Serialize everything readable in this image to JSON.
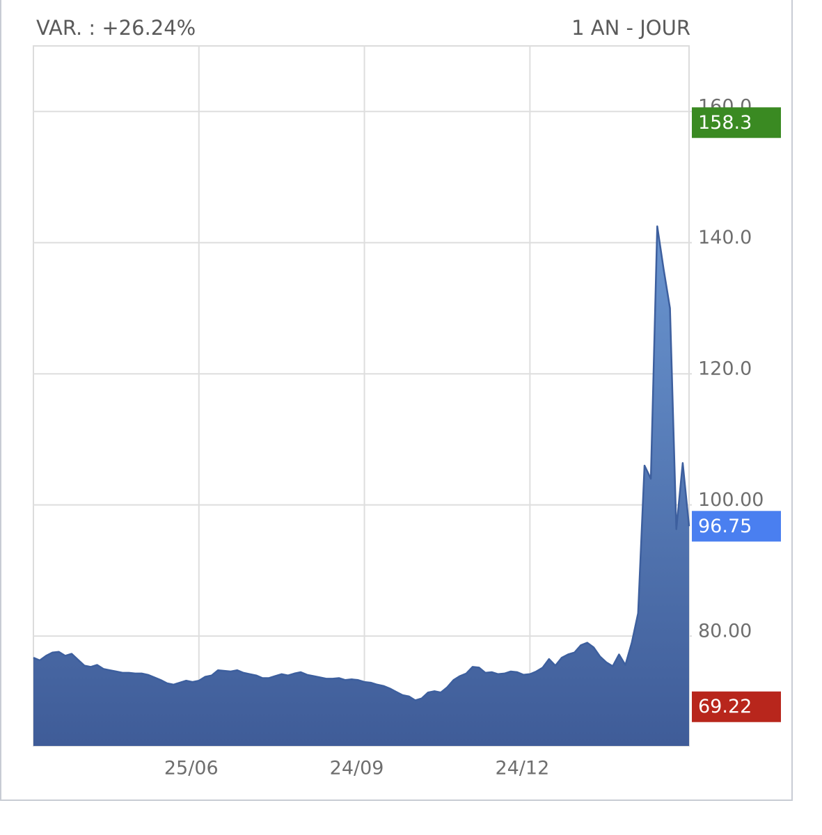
{
  "chart_data": {
    "type": "area",
    "change_label": "VAR. : +26.24%",
    "period": "1 AN - JOUR",
    "x": [
      null,
      null,
      null,
      null,
      null,
      null,
      null,
      null,
      null,
      null,
      null,
      null,
      null,
      null,
      null,
      null,
      null,
      null,
      null,
      null,
      null,
      null,
      null,
      null,
      null,
      null,
      "25/06",
      null,
      null,
      null,
      null,
      null,
      null,
      null,
      null,
      null,
      null,
      null,
      null,
      null,
      null,
      null,
      null,
      null,
      null,
      null,
      null,
      null,
      null,
      null,
      null,
      null,
      "24/09",
      null,
      null,
      null,
      null,
      null,
      null,
      null,
      null,
      null,
      null,
      null,
      null,
      null,
      null,
      null,
      null,
      null,
      null,
      null,
      null,
      null,
      null,
      null,
      null,
      null,
      "24/12",
      null,
      null,
      null,
      null,
      null,
      null,
      null,
      null,
      null,
      null,
      null,
      null,
      null,
      null,
      null,
      null,
      null,
      null,
      null,
      null,
      null,
      null,
      null,
      null,
      null
    ],
    "series": [
      {
        "color": "#3d5f9e",
        "values": [
          76.7,
          76.3,
          77,
          77.5,
          77.6,
          77,
          77.3,
          76.4,
          75.5,
          75.3,
          75.6,
          75,
          74.8,
          74.6,
          74.4,
          74.4,
          74.3,
          74.3,
          74.1,
          73.7,
          73.3,
          72.8,
          72.6,
          72.9,
          73.2,
          73,
          73.2,
          73.8,
          74,
          74.8,
          74.7,
          74.6,
          74.8,
          74.4,
          74.2,
          74,
          73.6,
          73.6,
          73.9,
          74.2,
          74,
          74.3,
          74.5,
          74.1,
          73.9,
          73.7,
          73.5,
          73.5,
          73.6,
          73.3,
          73.4,
          73.3,
          73,
          72.9,
          72.6,
          72.4,
          72,
          71.5,
          71,
          70.8,
          70.2,
          70.5,
          71.4,
          71.6,
          71.4,
          72.2,
          73.3,
          73.9,
          74.3,
          75.3,
          75.2,
          74.4,
          74.5,
          74.2,
          74.3,
          74.6,
          74.5,
          74.1,
          74.2,
          74.6,
          75.2,
          76.5,
          75.5,
          76.7,
          77.2,
          77.5,
          78.6,
          79,
          78.3,
          76.9,
          76,
          75.4,
          77.2,
          75.6,
          79,
          83.5,
          106,
          104,
          142.5,
          136,
          130,
          96.3,
          106.4,
          96.75
        ]
      }
    ],
    "ylim": [
      63.25,
      170
    ],
    "yticks": [
      {
        "value": 80,
        "label": "80.00"
      },
      {
        "value": 100,
        "label": "100.00"
      },
      {
        "value": 120,
        "label": "120.0"
      },
      {
        "value": 140,
        "label": "140.0"
      },
      {
        "value": 160,
        "label": "160.0"
      }
    ],
    "grid": true,
    "price_tags": [
      {
        "value": 158.3,
        "color": "#3a8a22"
      },
      {
        "value": 96.75,
        "color": "#4a7ff0"
      },
      {
        "value": 69.22,
        "color": "#b8261c"
      }
    ]
  }
}
